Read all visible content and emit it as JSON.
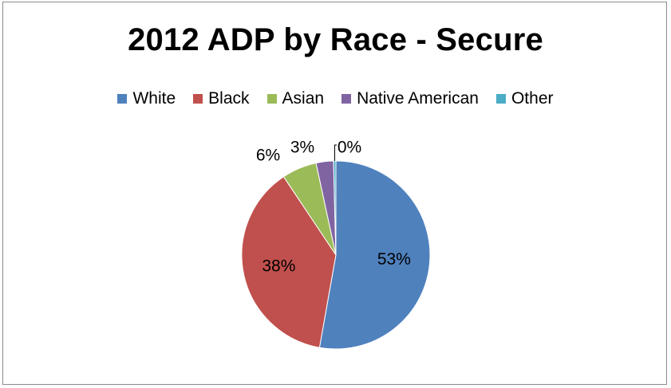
{
  "chart_data": {
    "type": "pie",
    "title": "2012 ADP by Race - Secure",
    "legend_position": "top",
    "categories": [
      "White",
      "Black",
      "Asian",
      "Native American",
      "Other"
    ],
    "values": [
      53,
      38,
      6,
      3,
      0.4
    ],
    "labels": [
      "53%",
      "38%",
      "6%",
      "3%",
      "0%"
    ],
    "colors": [
      "#4F81BD",
      "#C0504D",
      "#9BBB59",
      "#8064A2",
      "#4BACC6"
    ]
  }
}
